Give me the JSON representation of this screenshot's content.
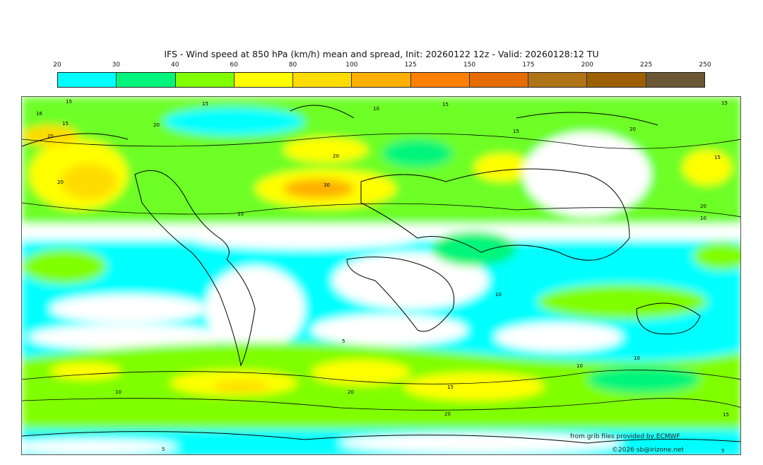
{
  "title": "IFS - Wind speed at 850 hPa (km/h) mean and spread, Init: 20260122 12z - Valid: 20260128:12 TU",
  "colorbar": {
    "ticks": [
      "20",
      "30",
      "40",
      "60",
      "80",
      "100",
      "125",
      "150",
      "175",
      "200",
      "225",
      "250"
    ],
    "colors": [
      "#00ffff",
      "#00f57a",
      "#80ff00",
      "#ffff00",
      "#ffdc00",
      "#ffb000",
      "#ff8000",
      "#e46c00",
      "#b07418",
      "#9c6000",
      "#6b5734"
    ]
  },
  "contour_labels": [
    "15",
    "15",
    "10",
    "15",
    "15",
    "16",
    "15",
    "20",
    "20",
    "20",
    "20",
    "30",
    "10",
    "15",
    "10",
    "20",
    "15",
    "20",
    "10",
    "5",
    "10",
    "10",
    "10",
    "20",
    "15",
    "20",
    "15",
    "5",
    "5"
  ],
  "credits": {
    "source": "from grib files provided by ECMWF",
    "copyright": "©2026 sb@irizone.net"
  }
}
